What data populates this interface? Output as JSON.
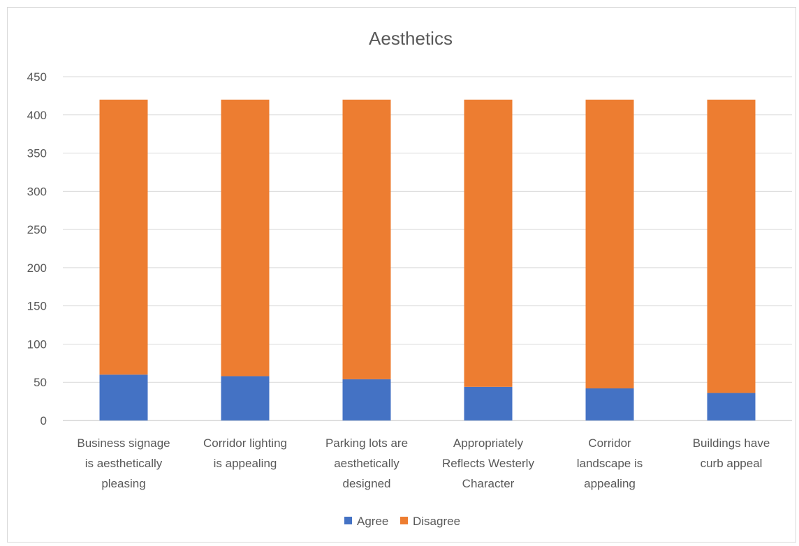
{
  "chart_data": {
    "type": "bar",
    "stacked": true,
    "title": "Aesthetics",
    "xlabel": "",
    "ylabel": "",
    "ylim": [
      0,
      450
    ],
    "yticks": [
      0,
      50,
      100,
      150,
      200,
      250,
      300,
      350,
      400,
      450
    ],
    "grid": true,
    "legend_position": "bottom",
    "categories": [
      [
        "Business signage",
        "is aesthetically",
        "pleasing"
      ],
      [
        "Corridor lighting",
        "is appealing"
      ],
      [
        "Parking lots are",
        "aesthetically",
        "designed"
      ],
      [
        "Appropriately",
        "Reflects Westerly",
        "Character"
      ],
      [
        "Corridor",
        "landscape is",
        "appealing"
      ],
      [
        "Buildings have",
        "curb appeal"
      ]
    ],
    "series": [
      {
        "name": "Agree",
        "color": "#4472c4",
        "values": [
          60,
          58,
          54,
          44,
          42,
          36
        ]
      },
      {
        "name": "Disagree",
        "color": "#ed7d31",
        "values": [
          360,
          362,
          366,
          376,
          378,
          384
        ]
      }
    ]
  }
}
